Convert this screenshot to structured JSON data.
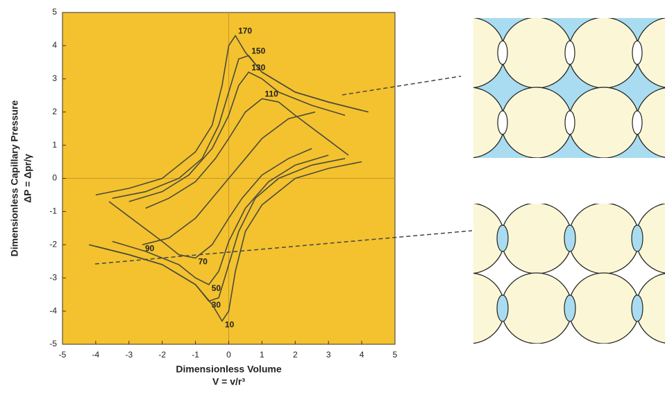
{
  "chart_data": {
    "type": "line",
    "xlabel": [
      "Dimensionless Volume",
      "V = v/r³"
    ],
    "ylabel": [
      "Dimensionless Capillary Pressure",
      "ΔP = Δpr/γ"
    ],
    "xlim": [
      -5,
      5
    ],
    "ylim": [
      -5,
      5
    ],
    "xticks": [
      -5,
      -4,
      -3,
      -2,
      -1,
      0,
      1,
      2,
      3,
      4,
      5
    ],
    "yticks": [
      -5,
      -4,
      -3,
      -2,
      -1,
      0,
      1,
      2,
      3,
      4,
      5
    ],
    "zero_lines": true,
    "background": "#f3c22e",
    "label_color": "#e8324a",
    "series": [
      {
        "name": "170",
        "color": "#4b4a3c",
        "x": [
          -4,
          -3,
          -2,
          -1,
          -0.5,
          -0.2,
          0,
          0.2,
          0.5,
          1,
          2,
          3,
          4.2
        ],
        "y": [
          -0.5,
          -0.3,
          0,
          0.8,
          1.6,
          2.8,
          4.0,
          4.3,
          3.8,
          3.2,
          2.6,
          2.3,
          2.0
        ]
      },
      {
        "name": "150",
        "color": "#4b4a3c",
        "x": [
          -3.5,
          -2.5,
          -1.5,
          -0.8,
          -0.3,
          0,
          0.3,
          0.6,
          1,
          2,
          3,
          4
        ],
        "y": [
          -0.6,
          -0.4,
          0,
          0.6,
          1.6,
          2.6,
          3.6,
          3.7,
          3.2,
          2.6,
          2.3,
          2.05
        ]
      },
      {
        "name": "130",
        "color": "#4b4a3c",
        "x": [
          -3,
          -2,
          -1.2,
          -0.5,
          0,
          0.3,
          0.6,
          1,
          1.5,
          2.5,
          3.5
        ],
        "y": [
          -0.7,
          -0.4,
          0.1,
          0.9,
          1.9,
          2.8,
          3.2,
          3.0,
          2.6,
          2.2,
          1.9
        ]
      },
      {
        "name": "110",
        "color": "#4b4a3c",
        "x": [
          -2.5,
          -1.8,
          -1,
          -0.4,
          0,
          0.5,
          1,
          1.5,
          2,
          2.8,
          3.6
        ],
        "y": [
          -0.9,
          -0.6,
          -0.1,
          0.6,
          1.2,
          2.0,
          2.4,
          2.3,
          1.9,
          1.3,
          0.7
        ]
      },
      {
        "name": "90",
        "color": "#4b4a3c",
        "x": [
          -2.6,
          -1.8,
          -1,
          -0.5,
          0,
          0.5,
          1,
          1.8,
          2.6
        ],
        "y": [
          -2.0,
          -1.8,
          -1.2,
          -0.6,
          0,
          0.6,
          1.2,
          1.8,
          2.0
        ]
      },
      {
        "name": "70",
        "color": "#4b4a3c",
        "x": [
          2.5,
          1.8,
          1,
          0.4,
          0,
          -0.5,
          -1,
          -1.5,
          -2,
          -2.8,
          -3.6
        ],
        "y": [
          0.9,
          0.6,
          0.1,
          -0.6,
          -1.2,
          -2.0,
          -2.4,
          -2.3,
          -1.9,
          -1.3,
          -0.7
        ]
      },
      {
        "name": "50",
        "color": "#4b4a3c",
        "x": [
          3,
          2,
          1.2,
          0.5,
          0,
          -0.3,
          -0.6,
          -1,
          -1.5,
          -2.5,
          -3.5
        ],
        "y": [
          0.7,
          0.4,
          -0.1,
          -0.9,
          -1.9,
          -2.8,
          -3.2,
          -3.0,
          -2.6,
          -2.2,
          -1.9
        ]
      },
      {
        "name": "30",
        "color": "#4b4a3c",
        "x": [
          3.5,
          2.5,
          1.5,
          0.8,
          0.3,
          0,
          -0.3,
          -0.6,
          -1,
          -2,
          -3,
          -4
        ],
        "y": [
          0.6,
          0.4,
          0,
          -0.6,
          -1.6,
          -2.6,
          -3.6,
          -3.7,
          -3.2,
          -2.6,
          -2.3,
          -2.05
        ]
      },
      {
        "name": "10",
        "color": "#4b4a3c",
        "x": [
          4,
          3,
          2,
          1,
          0.5,
          0.2,
          0,
          -0.2,
          -0.5,
          -1,
          -2,
          -3,
          -4.2
        ],
        "y": [
          0.5,
          0.3,
          0,
          -0.8,
          -1.6,
          -2.8,
          -4.0,
          -4.3,
          -3.8,
          -3.2,
          -2.6,
          -2.3,
          -2.0
        ]
      }
    ]
  }
}
